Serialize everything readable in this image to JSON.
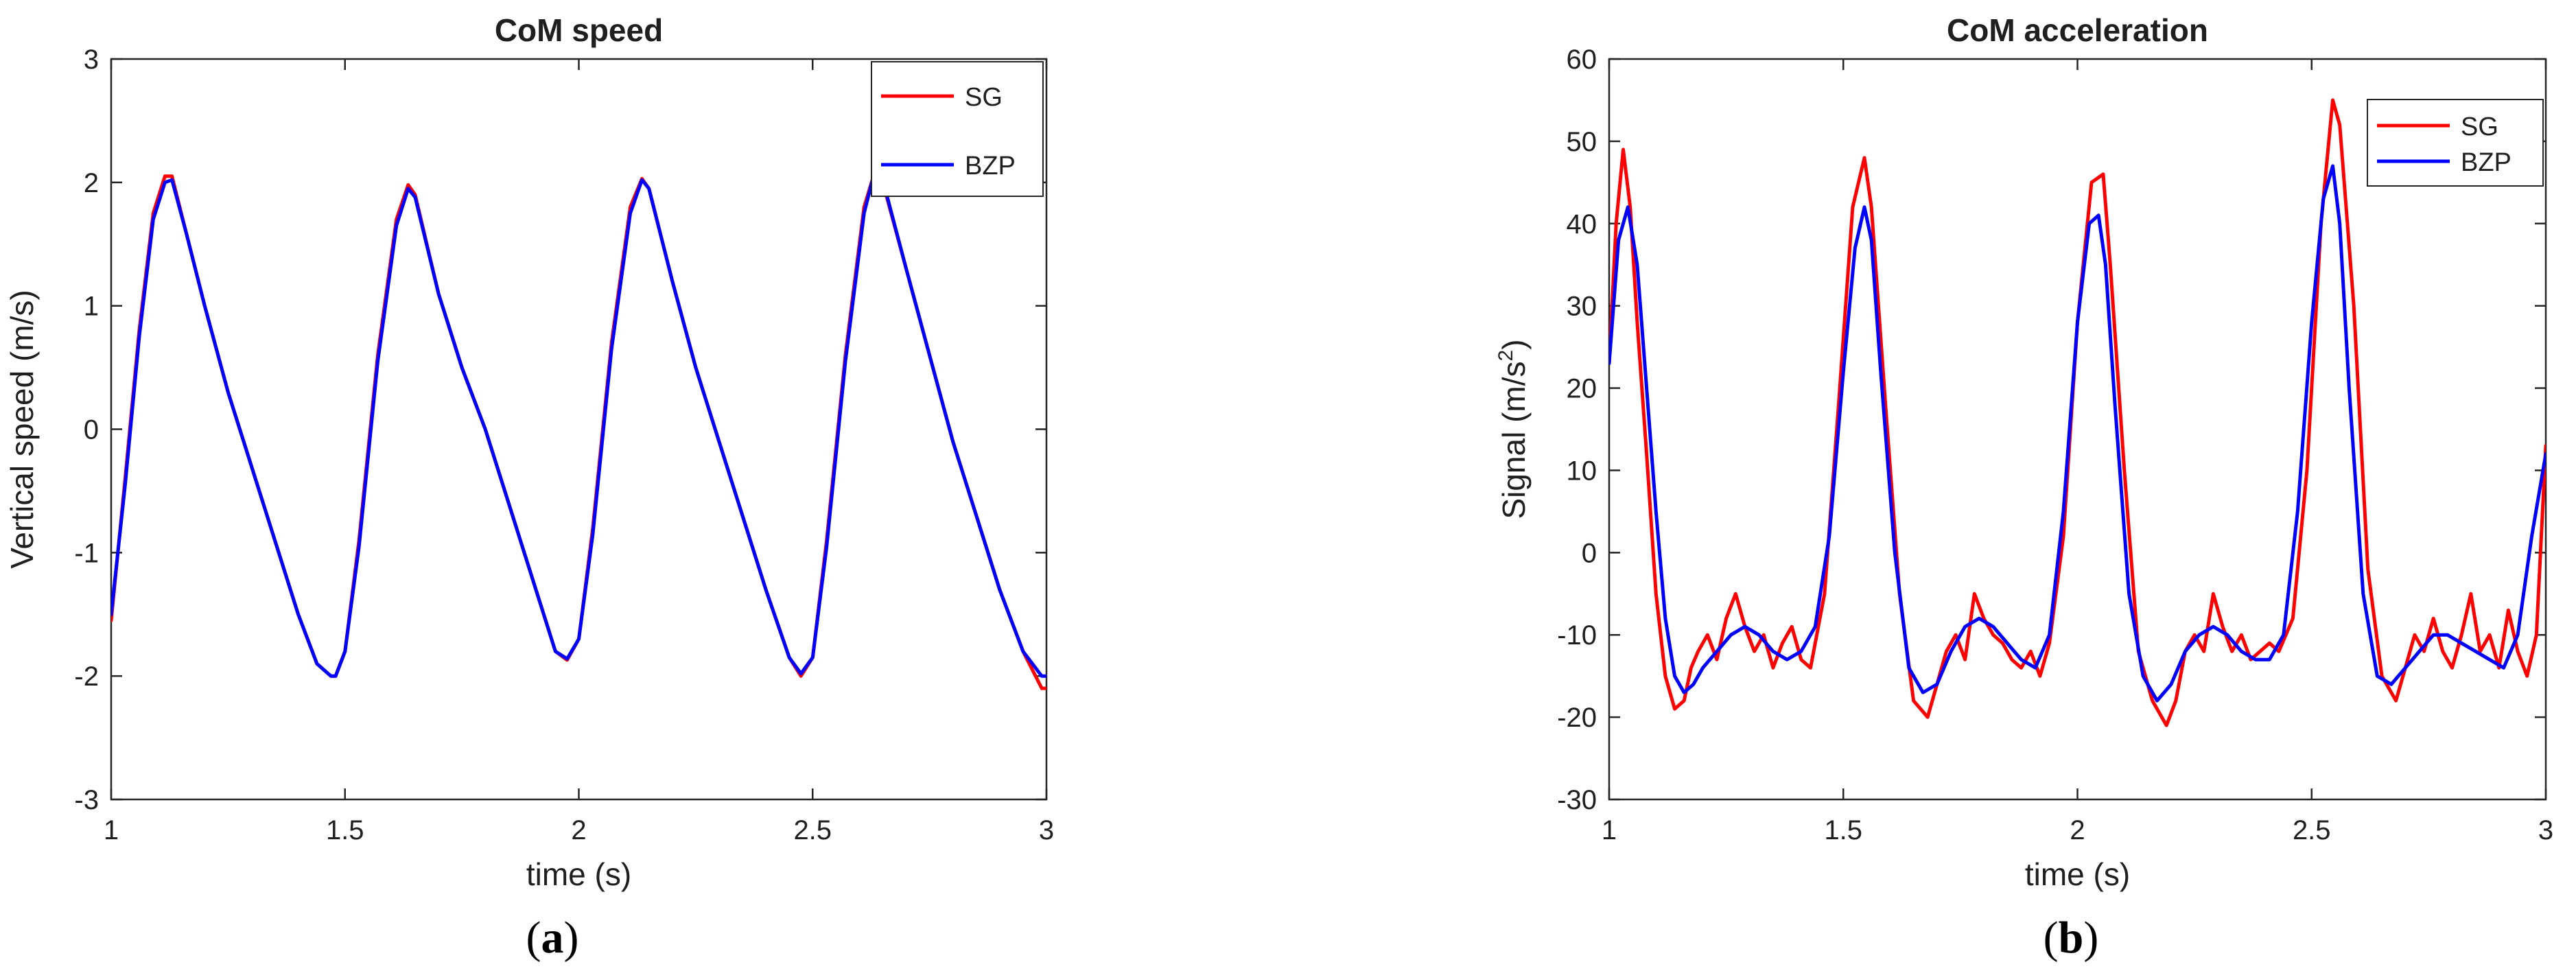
{
  "chart_data": [
    {
      "type": "line",
      "title": "CoM speed",
      "xlabel": "time (s)",
      "ylabel": "Vertical speed (m/s)",
      "panel_label": "(a)",
      "xlim": [
        1,
        3
      ],
      "ylim": [
        -3,
        3
      ],
      "xticks": [
        "1",
        "1.5",
        "2",
        "2.5",
        "3"
      ],
      "yticks": [
        "-3",
        "-2",
        "-1",
        "0",
        "1",
        "2",
        "3"
      ],
      "legend_position": "top-right",
      "series": [
        {
          "name": "SG",
          "color": "#ff0000",
          "x": [
            1.0,
            1.03,
            1.06,
            1.09,
            1.115,
            1.13,
            1.16,
            1.2,
            1.25,
            1.3,
            1.35,
            1.4,
            1.44,
            1.47,
            1.48,
            1.5,
            1.53,
            1.57,
            1.61,
            1.635,
            1.65,
            1.7,
            1.75,
            1.8,
            1.85,
            1.9,
            1.95,
            1.975,
            2.0,
            2.03,
            2.07,
            2.11,
            2.135,
            2.15,
            2.2,
            2.25,
            2.3,
            2.35,
            2.4,
            2.45,
            2.475,
            2.5,
            2.53,
            2.57,
            2.61,
            2.63,
            2.65,
            2.7,
            2.75,
            2.8,
            2.85,
            2.9,
            2.95,
            2.99,
            3.0
          ],
          "y": [
            -1.55,
            -0.4,
            0.8,
            1.75,
            2.05,
            2.05,
            1.6,
            1.0,
            0.3,
            -0.3,
            -0.9,
            -1.5,
            -1.9,
            -2.0,
            -2.0,
            -1.8,
            -0.9,
            0.6,
            1.7,
            1.98,
            1.9,
            1.1,
            0.5,
            0.0,
            -0.6,
            -1.2,
            -1.8,
            -1.87,
            -1.7,
            -0.8,
            0.7,
            1.8,
            2.03,
            1.95,
            1.2,
            0.5,
            -0.1,
            -0.7,
            -1.3,
            -1.85,
            -2.0,
            -1.85,
            -0.9,
            0.6,
            1.8,
            2.05,
            2.0,
            1.3,
            0.6,
            -0.1,
            -0.7,
            -1.3,
            -1.8,
            -2.1,
            -2.1
          ]
        },
        {
          "name": "BZP",
          "color": "#0000ff",
          "x": [
            1.0,
            1.03,
            1.06,
            1.09,
            1.115,
            1.13,
            1.16,
            1.2,
            1.25,
            1.3,
            1.35,
            1.4,
            1.44,
            1.47,
            1.48,
            1.5,
            1.53,
            1.57,
            1.61,
            1.635,
            1.65,
            1.7,
            1.75,
            1.8,
            1.85,
            1.9,
            1.95,
            1.975,
            2.0,
            2.03,
            2.07,
            2.11,
            2.135,
            2.15,
            2.2,
            2.25,
            2.3,
            2.35,
            2.4,
            2.45,
            2.475,
            2.5,
            2.53,
            2.57,
            2.61,
            2.63,
            2.65,
            2.7,
            2.75,
            2.8,
            2.85,
            2.9,
            2.95,
            2.99,
            3.0
          ],
          "y": [
            -1.5,
            -0.45,
            0.75,
            1.7,
            2.0,
            2.02,
            1.6,
            1.0,
            0.3,
            -0.3,
            -0.9,
            -1.5,
            -1.9,
            -2.0,
            -2.0,
            -1.8,
            -0.95,
            0.55,
            1.65,
            1.95,
            1.88,
            1.1,
            0.5,
            0.0,
            -0.6,
            -1.2,
            -1.8,
            -1.86,
            -1.7,
            -0.85,
            0.65,
            1.75,
            2.02,
            1.95,
            1.2,
            0.5,
            -0.1,
            -0.7,
            -1.3,
            -1.85,
            -1.98,
            -1.85,
            -0.95,
            0.55,
            1.75,
            2.05,
            2.02,
            1.3,
            0.6,
            -0.1,
            -0.7,
            -1.3,
            -1.8,
            -2.0,
            -2.0
          ]
        }
      ]
    },
    {
      "type": "line",
      "title": "CoM acceleration",
      "xlabel": "time (s)",
      "ylabel": "Signal (m/s",
      "ylabel_superscript": "2",
      "ylabel_suffix": ")",
      "panel_label": "(b)",
      "xlim": [
        1,
        3
      ],
      "ylim": [
        -30,
        60
      ],
      "xticks": [
        "1",
        "1.5",
        "2",
        "2.5",
        "3"
      ],
      "yticks": [
        "-30",
        "-20",
        "-10",
        "0",
        "10",
        "20",
        "30",
        "40",
        "50",
        "60"
      ],
      "legend_position": "top-right",
      "series": [
        {
          "name": "SG",
          "color": "#ff0000",
          "x": [
            1.0,
            1.015,
            1.03,
            1.045,
            1.06,
            1.08,
            1.1,
            1.12,
            1.14,
            1.16,
            1.175,
            1.19,
            1.21,
            1.23,
            1.25,
            1.27,
            1.29,
            1.31,
            1.33,
            1.35,
            1.37,
            1.39,
            1.41,
            1.43,
            1.46,
            1.49,
            1.52,
            1.545,
            1.56,
            1.59,
            1.62,
            1.65,
            1.68,
            1.7,
            1.72,
            1.74,
            1.76,
            1.78,
            1.8,
            1.82,
            1.84,
            1.86,
            1.88,
            1.9,
            1.92,
            1.94,
            1.97,
            2.0,
            2.03,
            2.055,
            2.07,
            2.1,
            2.13,
            2.16,
            2.19,
            2.21,
            2.23,
            2.25,
            2.27,
            2.29,
            2.31,
            2.33,
            2.35,
            2.37,
            2.39,
            2.41,
            2.43,
            2.46,
            2.49,
            2.52,
            2.545,
            2.56,
            2.59,
            2.62,
            2.65,
            2.68,
            2.7,
            2.72,
            2.74,
            2.76,
            2.78,
            2.8,
            2.82,
            2.84,
            2.86,
            2.88,
            2.9,
            2.92,
            2.94,
            2.96,
            2.98,
            3.0
          ],
          "y": [
            23,
            40,
            49,
            42,
            28,
            12,
            -5,
            -15,
            -19,
            -18,
            -14,
            -12,
            -10,
            -13,
            -8,
            -5,
            -9,
            -12,
            -10,
            -14,
            -11,
            -9,
            -13,
            -14,
            -5,
            18,
            42,
            48,
            42,
            18,
            -5,
            -18,
            -20,
            -16,
            -12,
            -10,
            -13,
            -5,
            -8,
            -10,
            -11,
            -13,
            -14,
            -12,
            -15,
            -11,
            2,
            28,
            45,
            46,
            35,
            10,
            -12,
            -18,
            -21,
            -18,
            -12,
            -10,
            -12,
            -5,
            -9,
            -12,
            -10,
            -13,
            -12,
            -11,
            -12,
            -8,
            10,
            40,
            55,
            52,
            30,
            -2,
            -15,
            -18,
            -14,
            -10,
            -12,
            -8,
            -12,
            -14,
            -10,
            -5,
            -12,
            -10,
            -14,
            -7,
            -12,
            -15,
            -10,
            13
          ]
        },
        {
          "name": "BZP",
          "color": "#0000ff",
          "x": [
            1.0,
            1.02,
            1.04,
            1.06,
            1.08,
            1.1,
            1.12,
            1.14,
            1.16,
            1.18,
            1.2,
            1.23,
            1.26,
            1.29,
            1.32,
            1.35,
            1.38,
            1.41,
            1.44,
            1.47,
            1.5,
            1.525,
            1.545,
            1.56,
            1.58,
            1.61,
            1.64,
            1.67,
            1.7,
            1.73,
            1.76,
            1.79,
            1.82,
            1.85,
            1.88,
            1.91,
            1.94,
            1.97,
            2.0,
            2.025,
            2.045,
            2.06,
            2.08,
            2.11,
            2.14,
            2.17,
            2.2,
            2.23,
            2.26,
            2.29,
            2.32,
            2.35,
            2.38,
            2.41,
            2.44,
            2.47,
            2.5,
            2.525,
            2.545,
            2.56,
            2.58,
            2.61,
            2.64,
            2.67,
            2.7,
            2.73,
            2.76,
            2.79,
            2.82,
            2.85,
            2.88,
            2.91,
            2.94,
            2.97,
            3.0
          ],
          "y": [
            23,
            38,
            42,
            35,
            20,
            5,
            -8,
            -15,
            -17,
            -16,
            -14,
            -12,
            -10,
            -9,
            -10,
            -12,
            -13,
            -12,
            -9,
            2,
            22,
            37,
            42,
            38,
            22,
            0,
            -14,
            -17,
            -16,
            -12,
            -9,
            -8,
            -9,
            -11,
            -13,
            -14,
            -10,
            5,
            28,
            40,
            41,
            35,
            18,
            -5,
            -15,
            -18,
            -16,
            -12,
            -10,
            -9,
            -10,
            -12,
            -13,
            -13,
            -10,
            5,
            28,
            43,
            47,
            40,
            20,
            -5,
            -15,
            -16,
            -14,
            -12,
            -10,
            -10,
            -11,
            -12,
            -13,
            -14,
            -10,
            2,
            12
          ]
        }
      ]
    }
  ]
}
